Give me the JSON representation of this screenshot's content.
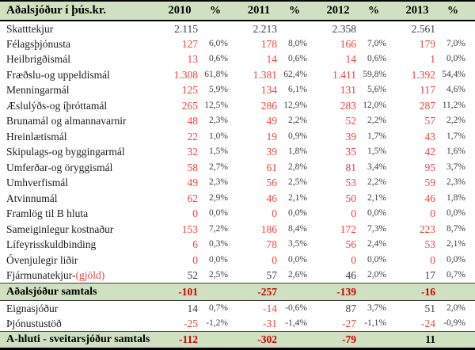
{
  "table": {
    "title": "Aðalsjóður í þús.kr.",
    "years": [
      "2010",
      "2011",
      "2012",
      "2013"
    ],
    "pct_header": "%",
    "rows": [
      {
        "label": "Skatttekjur",
        "cells": [
          {
            "v": "2.115",
            "p": ""
          },
          {
            "v": "2.213",
            "p": ""
          },
          {
            "v": "2.358",
            "p": ""
          },
          {
            "v": "2.561",
            "p": ""
          }
        ]
      },
      {
        "label": "Félagsþjónusta",
        "cells": [
          {
            "v": "127",
            "p": "6,0%",
            "r": true
          },
          {
            "v": "178",
            "p": "8,0%",
            "r": true
          },
          {
            "v": "166",
            "p": "7,0%",
            "r": true
          },
          {
            "v": "179",
            "p": "7,0%",
            "r": true
          }
        ]
      },
      {
        "label": "Heilbrigðismál",
        "cells": [
          {
            "v": "13",
            "p": "0,6%",
            "r": true
          },
          {
            "v": "14",
            "p": "0,6%",
            "r": true
          },
          {
            "v": "14",
            "p": "0,6%",
            "r": true
          },
          {
            "v": "1",
            "p": "0,0%",
            "r": true
          }
        ]
      },
      {
        "label": "Fræðslu-og uppeldismál",
        "cells": [
          {
            "v": "1.308",
            "p": "61,8%",
            "r": true
          },
          {
            "v": "1.381",
            "p": "62,4%",
            "r": true
          },
          {
            "v": "1.411",
            "p": "59,8%",
            "r": true
          },
          {
            "v": "1.392",
            "p": "54,4%",
            "r": true
          }
        ]
      },
      {
        "label": "Menningarmál",
        "cells": [
          {
            "v": "125",
            "p": "5,9%",
            "r": true
          },
          {
            "v": "134",
            "p": "6,1%",
            "r": true
          },
          {
            "v": "131",
            "p": "5,6%",
            "r": true
          },
          {
            "v": "117",
            "p": "4,6%",
            "r": true
          }
        ]
      },
      {
        "label": "Æslulýðs-og íþróttamál",
        "cells": [
          {
            "v": "265",
            "p": "12,5%",
            "r": true
          },
          {
            "v": "286",
            "p": "12,9%",
            "r": true
          },
          {
            "v": "283",
            "p": "12,0%",
            "r": true
          },
          {
            "v": "287",
            "p": "11,2%",
            "r": true
          }
        ]
      },
      {
        "label": "Brunamál og almannavarnir",
        "cells": [
          {
            "v": "48",
            "p": "2,3%",
            "r": true
          },
          {
            "v": "49",
            "p": "2,2%",
            "r": true
          },
          {
            "v": "52",
            "p": "2,2%",
            "r": true
          },
          {
            "v": "57",
            "p": "2,2%",
            "r": true
          }
        ]
      },
      {
        "label": "Hreinlætismál",
        "cells": [
          {
            "v": "22",
            "p": "1,0%",
            "r": true
          },
          {
            "v": "19",
            "p": "0,9%",
            "r": true
          },
          {
            "v": "39",
            "p": "1,7%",
            "r": true
          },
          {
            "v": "43",
            "p": "1,7%",
            "r": true
          }
        ]
      },
      {
        "label": "Skipulags-og byggingarmál",
        "cells": [
          {
            "v": "32",
            "p": "1,5%",
            "r": true
          },
          {
            "v": "39",
            "p": "1,8%",
            "r": true
          },
          {
            "v": "35",
            "p": "1,5%",
            "r": true
          },
          {
            "v": "42",
            "p": "1,6%",
            "r": true
          }
        ]
      },
      {
        "label": "Umferðar-og öryggismál",
        "cells": [
          {
            "v": "58",
            "p": "2,7%",
            "r": true
          },
          {
            "v": "61",
            "p": "2,8%",
            "r": true
          },
          {
            "v": "81",
            "p": "3,4%",
            "r": true
          },
          {
            "v": "95",
            "p": "3,7%",
            "r": true
          }
        ]
      },
      {
        "label": "Umhverfismál",
        "cells": [
          {
            "v": "49",
            "p": "2,3%",
            "r": true
          },
          {
            "v": "56",
            "p": "2,5%",
            "r": true
          },
          {
            "v": "53",
            "p": "2,2%",
            "r": true
          },
          {
            "v": "59",
            "p": "2,3%",
            "r": true
          }
        ]
      },
      {
        "label": "Atvinnumál",
        "cells": [
          {
            "v": "62",
            "p": "2,9%",
            "r": true
          },
          {
            "v": "46",
            "p": "2,1%",
            "r": true
          },
          {
            "v": "50",
            "p": "2,1%",
            "r": true
          },
          {
            "v": "46",
            "p": "1,8%",
            "r": true
          }
        ]
      },
      {
        "label": "Framlög til B hluta",
        "cells": [
          {
            "v": "0",
            "p": "0,0%",
            "r": true
          },
          {
            "v": "0",
            "p": "0,0%",
            "r": true
          },
          {
            "v": "0",
            "p": "0,0%",
            "r": true
          },
          {
            "v": "0",
            "p": "0,0%",
            "r": true
          }
        ]
      },
      {
        "label": "Sameiginlegur kostnaður",
        "cells": [
          {
            "v": "153",
            "p": "7,2%",
            "r": true
          },
          {
            "v": "186",
            "p": "8,4%",
            "r": true
          },
          {
            "v": "172",
            "p": "7,3%",
            "r": true
          },
          {
            "v": "223",
            "p": "8,7%",
            "r": true
          }
        ]
      },
      {
        "label": "Lífeyrisskuldbinding",
        "cells": [
          {
            "v": "6",
            "p": "0,3%",
            "r": true
          },
          {
            "v": "78",
            "p": "3,5%",
            "r": true
          },
          {
            "v": "56",
            "p": "2,4%",
            "r": true
          },
          {
            "v": "53",
            "p": "2,1%",
            "r": true
          }
        ]
      },
      {
        "label": "Óvenjulegir liðir",
        "cells": [
          {
            "v": "0",
            "p": "0,0%",
            "r": true
          },
          {
            "v": "0",
            "p": "0,0%",
            "r": true
          },
          {
            "v": "0",
            "p": "0,0%",
            "r": true
          },
          {
            "v": "0",
            "p": "0,0%",
            "r": true
          }
        ]
      },
      {
        "label": "Fjármunatekjur-",
        "label_red": "(gjöld)",
        "cells": [
          {
            "v": "52",
            "p": "2,5%"
          },
          {
            "v": "57",
            "p": "2,6%"
          },
          {
            "v": "46",
            "p": "2,0%"
          },
          {
            "v": "17",
            "p": "0,7%"
          }
        ]
      },
      {
        "label": "Aðalsjóður samtals",
        "total": true,
        "cells": [
          {
            "v": "-101",
            "p": "",
            "r": true
          },
          {
            "v": "-257",
            "p": "",
            "r": true
          },
          {
            "v": "-139",
            "p": "",
            "r": true
          },
          {
            "v": "-16",
            "p": "",
            "r": true
          }
        ]
      },
      {
        "label": "Eignasjóður",
        "cells": [
          {
            "v": "14",
            "p": "0,7%"
          },
          {
            "v": "-14",
            "p": "-0,6%",
            "r": true
          },
          {
            "v": "87",
            "p": "3,7%"
          },
          {
            "v": "51",
            "p": "2,0%"
          }
        ]
      },
      {
        "label": "Þjónustustöð",
        "cells": [
          {
            "v": "-25",
            "p": "-1,2%",
            "r": true
          },
          {
            "v": "-31",
            "p": "-1,4%",
            "r": true
          },
          {
            "v": "-27",
            "p": "-1,1%",
            "r": true
          },
          {
            "v": "-24",
            "p": "-0,9%",
            "r": true
          }
        ]
      },
      {
        "label": "A-hluti - sveitarsjóður samtals",
        "total": true,
        "cells": [
          {
            "v": "-112",
            "p": "",
            "r": true
          },
          {
            "v": "-302",
            "p": "",
            "r": true
          },
          {
            "v": "-79",
            "p": "",
            "r": true
          },
          {
            "v": "11",
            "p": "",
            "r": false
          }
        ]
      }
    ]
  },
  "colors": {
    "band_green": "#cfe1c1",
    "value_red": "#ea4540",
    "total_red": "#cf0000"
  }
}
